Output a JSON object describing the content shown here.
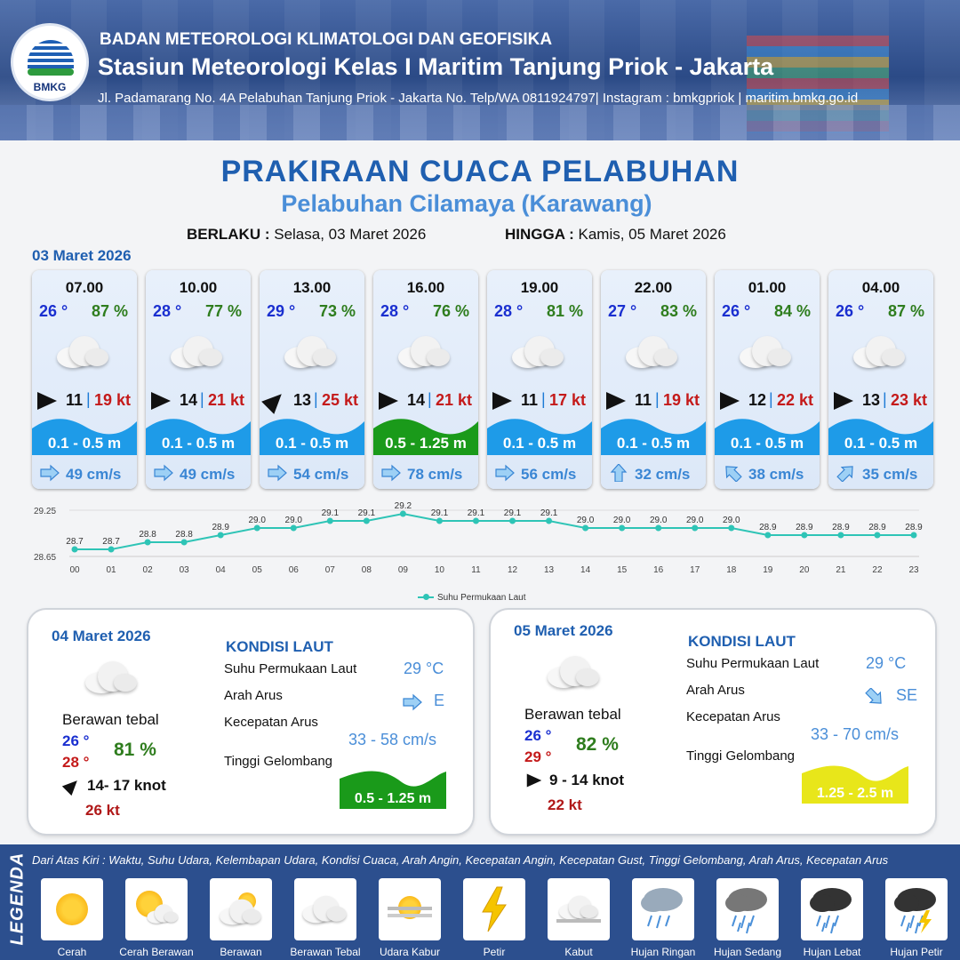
{
  "header": {
    "org": "BADAN METEOROLOGI KLIMATOLOGI DAN GEOFISIKA",
    "station": "Stasiun Meteorologi Kelas I Maritim Tanjung Priok - Jakarta",
    "address": "Jl. Padamarang No. 4A Pelabuhan Tanjung Priok - Jakarta No. Telp/WA 0811924797| Instagram : bmkgpriok | maritim.bmkg.go.id",
    "logo_text": "BMKG"
  },
  "title": "PRAKIRAAN CUACA PELABUHAN",
  "subtitle": "Pelabuhan Cilamaya (Karawang)",
  "validity": {
    "from_label": "BERLAKU :",
    "from_value": "Selasa, 03 Maret 2026",
    "to_label": "HINGGA :",
    "to_value": "Kamis, 05 Maret 2026"
  },
  "day1_date": "03 Maret 2026",
  "forecasts": [
    {
      "time": "07.00",
      "temp": "26 °",
      "hum": "87 %",
      "wind": "11",
      "gust": "19 kt",
      "wave": "0.1 - 0.5 m",
      "wave_color": "#1e9be8",
      "current": "49 cm/s",
      "wind_dir": 90,
      "cur_dir": 90
    },
    {
      "time": "10.00",
      "temp": "28 °",
      "hum": "77 %",
      "wind": "14",
      "gust": "21 kt",
      "wave": "0.1 - 0.5 m",
      "wave_color": "#1e9be8",
      "current": "49 cm/s",
      "wind_dir": 90,
      "cur_dir": 90
    },
    {
      "time": "13.00",
      "temp": "29 °",
      "hum": "73 %",
      "wind": "13",
      "gust": "25 kt",
      "wave": "0.1 - 0.5 m",
      "wave_color": "#1e9be8",
      "current": "54 cm/s",
      "wind_dir": 45,
      "cur_dir": 90
    },
    {
      "time": "16.00",
      "temp": "28 °",
      "hum": "76 %",
      "wind": "14",
      "gust": "21 kt",
      "wave": "0.5 - 1.25 m",
      "wave_color": "#1a9a1a",
      "current": "78 cm/s",
      "wind_dir": 90,
      "cur_dir": 90
    },
    {
      "time": "19.00",
      "temp": "28 °",
      "hum": "81 %",
      "wind": "11",
      "gust": "17 kt",
      "wave": "0.1 - 0.5 m",
      "wave_color": "#1e9be8",
      "current": "56 cm/s",
      "wind_dir": 90,
      "cur_dir": 90
    },
    {
      "time": "22.00",
      "temp": "27 °",
      "hum": "83 %",
      "wind": "11",
      "gust": "19 kt",
      "wave": "0.1 - 0.5 m",
      "wave_color": "#1e9be8",
      "current": "32 cm/s",
      "wind_dir": 90,
      "cur_dir": 0
    },
    {
      "time": "01.00",
      "temp": "26 °",
      "hum": "84 %",
      "wind": "12",
      "gust": "22 kt",
      "wave": "0.1 - 0.5 m",
      "wave_color": "#1e9be8",
      "current": "38 cm/s",
      "wind_dir": 90,
      "cur_dir": 315
    },
    {
      "time": "04.00",
      "temp": "26 °",
      "hum": "87 %",
      "wind": "13",
      "gust": "23 kt",
      "wave": "0.1 - 0.5 m",
      "wave_color": "#1e9be8",
      "current": "35 cm/s",
      "wind_dir": 90,
      "cur_dir": 45
    }
  ],
  "chart_data": {
    "type": "line",
    "x": [
      "00",
      "01",
      "02",
      "03",
      "04",
      "05",
      "06",
      "07",
      "08",
      "09",
      "10",
      "11",
      "12",
      "13",
      "14",
      "15",
      "16",
      "17",
      "18",
      "19",
      "20",
      "21",
      "22",
      "23"
    ],
    "series": [
      {
        "name": "Suhu Permukaan Laut",
        "values": [
          28.7,
          28.7,
          28.8,
          28.8,
          28.9,
          29.0,
          29.0,
          29.1,
          29.1,
          29.2,
          29.1,
          29.1,
          29.1,
          29.1,
          29.0,
          29.0,
          29.0,
          29.0,
          29.0,
          28.9,
          28.9,
          28.9,
          28.9,
          28.9
        ]
      }
    ],
    "ylim": [
      28.65,
      29.25
    ],
    "ytick_labels": [
      "29.25",
      "28.65"
    ],
    "title": "",
    "xlabel": "",
    "ylabel": "",
    "legend_position": "bottom-center",
    "color": "#2ec4b6"
  },
  "days": [
    {
      "date": "04 Maret 2026",
      "cond": "Berawan tebal",
      "tmin": "26 °",
      "tmax": "28 °",
      "hum": "81 %",
      "wind": "14- 17 knot",
      "gust": "26 kt",
      "kondisi_title": "KONDISI LAUT",
      "sst_label": "Suhu Permukaan Laut",
      "sst": "29 °C",
      "dir_label": "Arah Arus",
      "dir": "E",
      "speed_label": "Kecepatan Arus",
      "speed": "33  - 58 cm/s",
      "wave_label": "Tinggi Gelombang",
      "wave": "0.5 - 1.25 m",
      "wave_color": "#1a9a1a",
      "wave_text_color": "#ffffff"
    },
    {
      "date": "05 Maret 2026",
      "cond": "Berawan tebal",
      "tmin": "26 °",
      "tmax": "29 °",
      "hum": "82 %",
      "wind": "9  - 14 knot",
      "gust": "22 kt",
      "kondisi_title": "KONDISI LAUT",
      "sst_label": "Suhu Permukaan Laut",
      "sst": "29 °C",
      "dir_label": "Arah Arus",
      "dir": "SE",
      "speed_label": "Kecepatan Arus",
      "speed": "33 - 70 cm/s",
      "wave_label": "Tinggi Gelombang",
      "wave": "1.25 - 2.5 m",
      "wave_color": "#e8e61a",
      "wave_text_color": "#ffffff"
    }
  ],
  "legend": {
    "title": "LEGENDA",
    "description": "Dari Atas Kiri : Waktu, Suhu Udara, Kelembapan Udara, Kondisi Cuaca, Arah Angin, Kecepatan Angin, Kecepatan Gust, Tinggi Gelombang, Arah Arus, Kecepatan Arus",
    "items": [
      {
        "name": "Cerah",
        "icon": "sun-icon"
      },
      {
        "name": "Cerah Berawan",
        "icon": "sun-cloud-icon"
      },
      {
        "name": "Berawan",
        "icon": "cloud-sun-icon"
      },
      {
        "name": "Berawan Tebal",
        "icon": "cloud-icon"
      },
      {
        "name": "Udara Kabur",
        "icon": "haze-icon"
      },
      {
        "name": "Petir",
        "icon": "lightning-icon"
      },
      {
        "name": "Kabut",
        "icon": "fog-icon"
      },
      {
        "name": "Hujan Ringan",
        "icon": "light-rain-icon"
      },
      {
        "name": "Hujan Sedang",
        "icon": "moderate-rain-icon"
      },
      {
        "name": "Hujan Lebat",
        "icon": "heavy-rain-icon"
      },
      {
        "name": "Hujan Petir",
        "icon": "thunderstorm-icon"
      }
    ]
  }
}
